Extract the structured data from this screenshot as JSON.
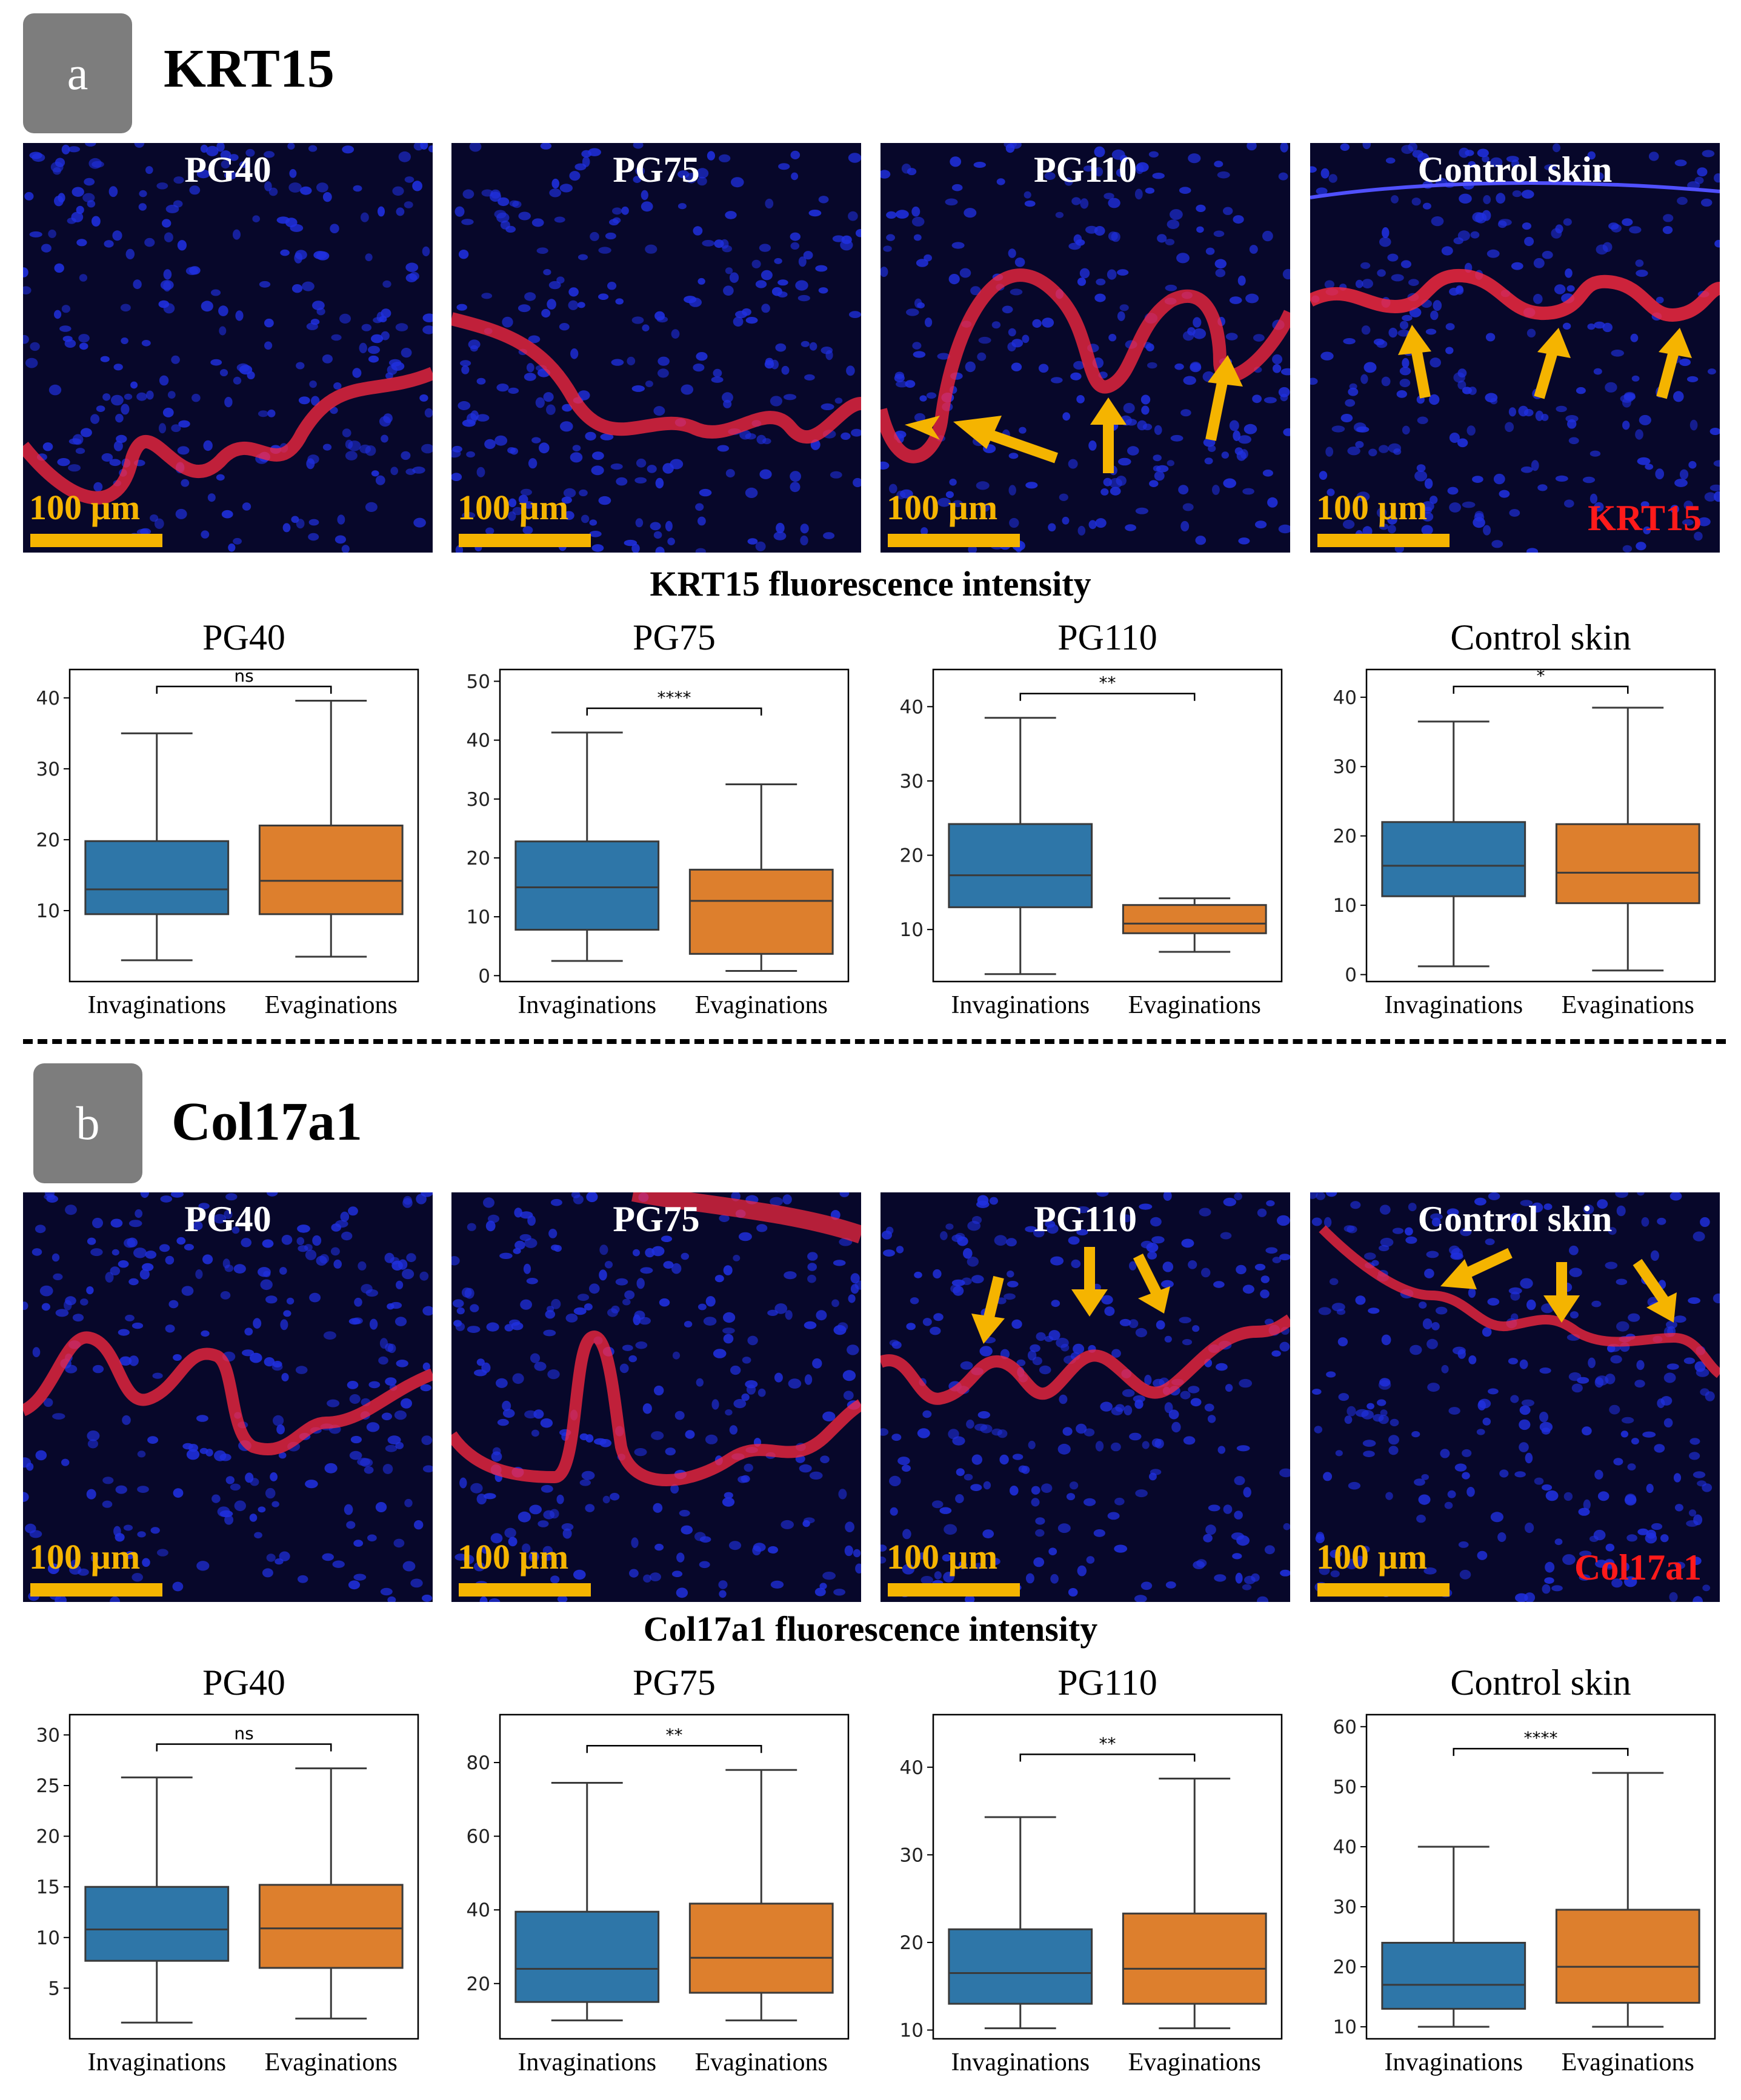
{
  "panel_a": {
    "tag": "a",
    "title": "KRT15",
    "images": [
      {
        "title": "PG40",
        "scale": "100 µm",
        "marker": ""
      },
      {
        "title": "PG75",
        "scale": "100 µm",
        "marker": ""
      },
      {
        "title": "PG110",
        "scale": "100 µm",
        "marker": ""
      },
      {
        "title": "Control skin",
        "scale": "100 µm",
        "marker": "KRT15"
      }
    ],
    "heading": "KRT15 fluorescence intensity"
  },
  "panel_b": {
    "tag": "b",
    "title": "Col17a1",
    "images": [
      {
        "title": "PG40",
        "scale": "100 µm",
        "marker": ""
      },
      {
        "title": "PG75",
        "scale": "100 µm",
        "marker": ""
      },
      {
        "title": "PG110",
        "scale": "100 µm",
        "marker": ""
      },
      {
        "title": "Control skin",
        "scale": "100 µm",
        "marker": "Col17a1"
      }
    ],
    "heading": "Col17a1 fluorescence intensity"
  },
  "colors": {
    "invaginations": "#2e76a8",
    "evaginations": "#dd7f2d",
    "arrow": "#f5b400",
    "stain_red": "#ff2a40",
    "nuclei_blue": "#2030e0"
  },
  "chart_data": [
    {
      "type": "box",
      "title": "PG40",
      "categories": [
        "Invaginations",
        "Evaginations"
      ],
      "significance": "ns",
      "ylim": [
        0,
        44
      ],
      "yticks": [
        10,
        20,
        30,
        40
      ],
      "boxes": [
        {
          "min": 3,
          "q1": 9.5,
          "median": 13,
          "q3": 19.8,
          "max": 35
        },
        {
          "min": 3.5,
          "q1": 9.5,
          "median": 14.2,
          "q3": 22,
          "max": 39.6
        }
      ]
    },
    {
      "type": "box",
      "title": "PG75",
      "categories": [
        "Invaginations",
        "Evaginations"
      ],
      "significance": "****",
      "ylim": [
        -1,
        52
      ],
      "yticks": [
        0,
        10,
        20,
        30,
        40,
        50
      ],
      "boxes": [
        {
          "min": 2.5,
          "q1": 7.8,
          "median": 15,
          "q3": 22.8,
          "max": 41.3
        },
        {
          "min": 0.8,
          "q1": 3.7,
          "median": 12.7,
          "q3": 18,
          "max": 32.5
        }
      ]
    },
    {
      "type": "box",
      "title": "PG110",
      "categories": [
        "Invaginations",
        "Evaginations"
      ],
      "significance": "**",
      "ylim": [
        3,
        45
      ],
      "yticks": [
        10,
        20,
        30,
        40
      ],
      "boxes": [
        {
          "min": 4,
          "q1": 13,
          "median": 17.3,
          "q3": 24.2,
          "max": 38.5
        },
        {
          "min": 7,
          "q1": 9.5,
          "median": 10.8,
          "q3": 13.3,
          "max": 14.2
        }
      ]
    },
    {
      "type": "box",
      "title": "Control skin",
      "categories": [
        "Invaginations",
        "Evaginations"
      ],
      "significance": "*",
      "ylim": [
        -1,
        44
      ],
      "yticks": [
        0,
        10,
        20,
        30,
        40
      ],
      "boxes": [
        {
          "min": 1.2,
          "q1": 11.3,
          "median": 15.7,
          "q3": 22,
          "max": 36.5
        },
        {
          "min": 0.6,
          "q1": 10.3,
          "median": 14.7,
          "q3": 21.7,
          "max": 38.5
        }
      ]
    },
    {
      "type": "box",
      "title": "PG40",
      "categories": [
        "Invaginations",
        "Evaginations"
      ],
      "significance": "ns",
      "ylim": [
        0,
        32
      ],
      "yticks": [
        5,
        10,
        15,
        20,
        25,
        30
      ],
      "boxes": [
        {
          "min": 1.6,
          "q1": 7.7,
          "median": 10.8,
          "q3": 15,
          "max": 25.8
        },
        {
          "min": 2,
          "q1": 7,
          "median": 10.9,
          "q3": 15.2,
          "max": 26.7
        }
      ]
    },
    {
      "type": "box",
      "title": "PG75",
      "categories": [
        "Invaginations",
        "Evaginations"
      ],
      "significance": "**",
      "ylim": [
        5,
        93
      ],
      "yticks": [
        20,
        40,
        60,
        80
      ],
      "boxes": [
        {
          "min": 10,
          "q1": 15,
          "median": 24,
          "q3": 39.5,
          "max": 74.5
        },
        {
          "min": 10,
          "q1": 17.5,
          "median": 27,
          "q3": 41.7,
          "max": 78
        }
      ]
    },
    {
      "type": "box",
      "title": "PG110",
      "categories": [
        "Invaginations",
        "Evaginations"
      ],
      "significance": "**",
      "ylim": [
        9,
        46
      ],
      "yticks": [
        10,
        20,
        30,
        40
      ],
      "boxes": [
        {
          "min": 10.2,
          "q1": 13,
          "median": 16.5,
          "q3": 21.5,
          "max": 34.3
        },
        {
          "min": 10.2,
          "q1": 13,
          "median": 17,
          "q3": 23.3,
          "max": 38.7
        }
      ]
    },
    {
      "type": "box",
      "title": "Control skin",
      "categories": [
        "Invaginations",
        "Evaginations"
      ],
      "significance": "****",
      "ylim": [
        8,
        62
      ],
      "yticks": [
        10,
        20,
        30,
        40,
        50,
        60
      ],
      "boxes": [
        {
          "min": 10,
          "q1": 13,
          "median": 17,
          "q3": 24,
          "max": 40
        },
        {
          "min": 10,
          "q1": 14,
          "median": 20,
          "q3": 29.5,
          "max": 52.3
        }
      ]
    }
  ]
}
